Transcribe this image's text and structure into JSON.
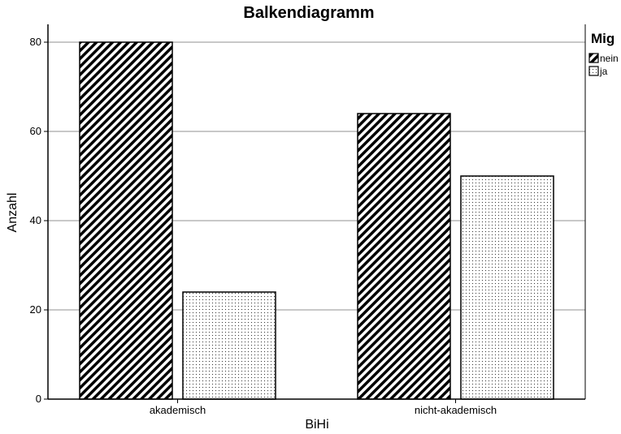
{
  "chart_data": {
    "type": "bar",
    "title": "Balkendiagramm",
    "xlabel": "BiHi",
    "ylabel": "Anzahl",
    "categories": [
      "akademisch",
      "nicht-akademisch"
    ],
    "series": [
      {
        "name": "nein",
        "values": [
          80,
          64
        ],
        "pattern": "diagonal-stripes",
        "color": "#000000"
      },
      {
        "name": "ja",
        "values": [
          24,
          50
        ],
        "pattern": "dots",
        "color": "#000000"
      }
    ],
    "ylim": [
      0,
      84
    ],
    "yticks": [
      "0",
      "20",
      "40",
      "60",
      "80"
    ],
    "grid": true,
    "legend": {
      "title": "Mig",
      "placement": "top-right"
    }
  }
}
